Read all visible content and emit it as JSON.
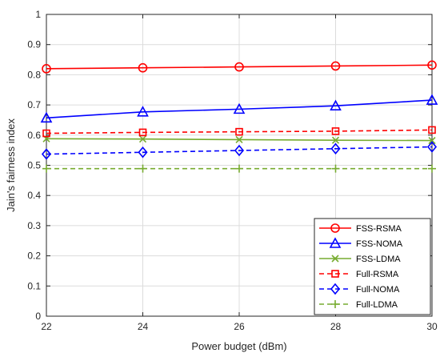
{
  "chart_data": {
    "type": "line",
    "title": "",
    "xlabel": "Power budget (dBm)",
    "ylabel": "Jain's fairness index",
    "x": [
      22,
      24,
      26,
      28,
      30
    ],
    "xlim": [
      22,
      30
    ],
    "ylim": [
      0,
      1
    ],
    "xticks": [
      "22",
      "24",
      "26",
      "28",
      "30"
    ],
    "yticks": [
      "0",
      "0.1",
      "0.2",
      "0.3",
      "0.4",
      "0.5",
      "0.6",
      "0.7",
      "0.8",
      "0.9",
      "1"
    ],
    "grid": true,
    "legend_position": "bottom-right",
    "series": [
      {
        "name": "FSS-RSMA",
        "values": [
          0.82,
          0.823,
          0.826,
          0.829,
          0.832
        ],
        "color": "#ff0000",
        "dash": "solid",
        "marker": "circle"
      },
      {
        "name": "FSS-NOMA",
        "values": [
          0.657,
          0.677,
          0.686,
          0.697,
          0.716
        ],
        "color": "#0000ff",
        "dash": "solid",
        "marker": "triangle"
      },
      {
        "name": "FSS-LDMA",
        "values": [
          0.588,
          0.587,
          0.585,
          0.583,
          0.582
        ],
        "color": "#77ac30",
        "dash": "solid",
        "marker": "x"
      },
      {
        "name": "Full-RSMA",
        "values": [
          0.606,
          0.609,
          0.611,
          0.613,
          0.617
        ],
        "color": "#ff0000",
        "dash": "dashed",
        "marker": "square"
      },
      {
        "name": "Full-NOMA",
        "values": [
          0.537,
          0.543,
          0.549,
          0.555,
          0.561
        ],
        "color": "#0000ff",
        "dash": "dashed",
        "marker": "diamond"
      },
      {
        "name": "Full-LDMA",
        "values": [
          0.489,
          0.489,
          0.489,
          0.489,
          0.489
        ],
        "color": "#77ac30",
        "dash": "dashed",
        "marker": "plus"
      }
    ]
  }
}
